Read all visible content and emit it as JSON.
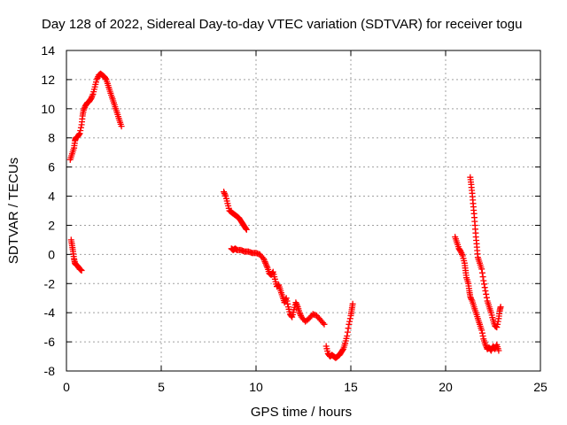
{
  "chart_data": {
    "type": "scatter",
    "title": "Day 128 of 2022, Sidereal Day-to-day VTEC variation (SDTVAR) for receiver togu",
    "xlabel": "GPS time / hours",
    "ylabel": "SDTVAR / TECUs",
    "xlim": [
      0,
      25
    ],
    "ylim": [
      -8,
      14
    ],
    "xticks": [
      0,
      5,
      10,
      15,
      20,
      25
    ],
    "yticks": [
      -8,
      -6,
      -4,
      -2,
      0,
      2,
      4,
      6,
      8,
      10,
      12,
      14
    ],
    "grid": true,
    "marker": "+",
    "color": "#ff0000",
    "series": [
      {
        "name": "SDTVAR",
        "segments": [
          [
            [
              0.2,
              6.5
            ],
            [
              0.3,
              6.9
            ],
            [
              0.4,
              7.3
            ],
            [
              0.45,
              7.8
            ],
            [
              0.5,
              8.0
            ],
            [
              0.6,
              8.1
            ],
            [
              0.7,
              8.3
            ],
            [
              0.8,
              8.9
            ],
            [
              0.85,
              9.5
            ],
            [
              0.9,
              9.9
            ],
            [
              1.0,
              10.2
            ],
            [
              1.1,
              10.4
            ],
            [
              1.2,
              10.5
            ],
            [
              1.3,
              10.7
            ],
            [
              1.4,
              11.0
            ],
            [
              1.5,
              11.5
            ],
            [
              1.6,
              12.0
            ],
            [
              1.7,
              12.3
            ],
            [
              1.8,
              12.4
            ],
            [
              1.9,
              12.3
            ],
            [
              2.0,
              12.2
            ],
            [
              2.1,
              12.0
            ],
            [
              2.2,
              11.6
            ],
            [
              2.3,
              11.2
            ],
            [
              2.4,
              10.8
            ],
            [
              2.5,
              10.4
            ],
            [
              2.6,
              10.0
            ],
            [
              2.7,
              9.6
            ],
            [
              2.8,
              9.2
            ],
            [
              2.9,
              8.8
            ]
          ],
          [
            [
              0.25,
              1.0
            ],
            [
              0.3,
              0.6
            ],
            [
              0.35,
              0.2
            ],
            [
              0.4,
              -0.3
            ],
            [
              0.45,
              -0.6
            ],
            [
              0.5,
              -0.7
            ],
            [
              0.6,
              -0.8
            ],
            [
              0.7,
              -1.0
            ],
            [
              0.8,
              -1.1
            ]
          ],
          [
            [
              8.3,
              4.3
            ],
            [
              8.4,
              4.0
            ],
            [
              8.5,
              3.5
            ],
            [
              8.6,
              3.0
            ],
            [
              8.7,
              2.9
            ],
            [
              8.8,
              2.8
            ],
            [
              8.9,
              2.7
            ],
            [
              9.0,
              2.6
            ],
            [
              9.1,
              2.5
            ],
            [
              9.2,
              2.3
            ],
            [
              9.3,
              2.1
            ],
            [
              9.4,
              1.9
            ],
            [
              9.5,
              1.7
            ]
          ],
          [
            [
              8.7,
              0.4
            ],
            [
              8.8,
              0.3
            ],
            [
              8.9,
              0.4
            ],
            [
              9.0,
              0.3
            ],
            [
              9.2,
              0.3
            ],
            [
              9.4,
              0.2
            ],
            [
              9.6,
              0.2
            ],
            [
              9.8,
              0.1
            ],
            [
              10.0,
              0.1
            ],
            [
              10.2,
              0.0
            ],
            [
              10.4,
              -0.3
            ],
            [
              10.5,
              -0.6
            ],
            [
              10.6,
              -0.9
            ],
            [
              10.7,
              -1.3
            ],
            [
              10.8,
              -1.4
            ],
            [
              10.9,
              -1.2
            ],
            [
              11.0,
              -1.7
            ],
            [
              11.1,
              -2.2
            ],
            [
              11.2,
              -2.1
            ],
            [
              11.3,
              -2.5
            ],
            [
              11.4,
              -2.9
            ],
            [
              11.5,
              -3.3
            ],
            [
              11.6,
              -3.0
            ],
            [
              11.7,
              -3.6
            ],
            [
              11.8,
              -4.1
            ],
            [
              11.9,
              -4.3
            ],
            [
              12.0,
              -3.8
            ],
            [
              12.1,
              -3.3
            ],
            [
              12.2,
              -3.6
            ],
            [
              12.3,
              -4.0
            ],
            [
              12.4,
              -4.3
            ],
            [
              12.6,
              -4.6
            ],
            [
              12.8,
              -4.4
            ],
            [
              13.0,
              -4.1
            ],
            [
              13.2,
              -4.2
            ],
            [
              13.4,
              -4.5
            ],
            [
              13.6,
              -4.8
            ]
          ],
          [
            [
              13.7,
              -6.3
            ],
            [
              13.8,
              -6.8
            ],
            [
              13.9,
              -7.0
            ],
            [
              14.0,
              -6.9
            ],
            [
              14.1,
              -7.0
            ],
            [
              14.2,
              -7.1
            ],
            [
              14.3,
              -7.0
            ],
            [
              14.4,
              -6.9
            ],
            [
              14.5,
              -6.7
            ],
            [
              14.6,
              -6.5
            ],
            [
              14.7,
              -6.1
            ],
            [
              14.8,
              -5.6
            ],
            [
              14.9,
              -4.8
            ],
            [
              15.0,
              -4.2
            ],
            [
              15.05,
              -3.8
            ],
            [
              15.1,
              -3.4
            ]
          ],
          [
            [
              20.5,
              1.2
            ],
            [
              20.6,
              0.8
            ],
            [
              20.7,
              0.4
            ],
            [
              20.8,
              0.2
            ],
            [
              20.9,
              -0.1
            ],
            [
              21.0,
              -0.6
            ],
            [
              21.05,
              -1.1
            ],
            [
              21.1,
              -1.6
            ],
            [
              21.2,
              -2.0
            ],
            [
              21.25,
              -2.5
            ],
            [
              21.3,
              -2.9
            ],
            [
              21.4,
              -3.2
            ],
            [
              21.5,
              -3.6
            ],
            [
              21.6,
              -4.0
            ],
            [
              21.7,
              -4.4
            ],
            [
              21.8,
              -4.8
            ],
            [
              21.9,
              -5.2
            ],
            [
              22.0,
              -5.8
            ],
            [
              22.1,
              -6.2
            ],
            [
              22.2,
              -6.5
            ],
            [
              22.3,
              -6.4
            ],
            [
              22.4,
              -6.6
            ],
            [
              22.5,
              -6.3
            ],
            [
              22.6,
              -6.5
            ],
            [
              22.7,
              -6.2
            ],
            [
              22.8,
              -6.6
            ]
          ],
          [
            [
              21.3,
              5.3
            ],
            [
              21.35,
              4.8
            ],
            [
              21.4,
              4.2
            ],
            [
              21.45,
              3.5
            ],
            [
              21.5,
              2.8
            ],
            [
              21.55,
              2.0
            ],
            [
              21.6,
              1.2
            ],
            [
              21.65,
              0.5
            ],
            [
              21.7,
              -0.2
            ],
            [
              21.8,
              -0.6
            ],
            [
              21.9,
              -1.0
            ],
            [
              22.0,
              -1.8
            ],
            [
              22.1,
              -2.5
            ],
            [
              22.2,
              -3.2
            ],
            [
              22.3,
              -3.6
            ],
            [
              22.4,
              -4.0
            ],
            [
              22.5,
              -4.5
            ],
            [
              22.6,
              -4.9
            ],
            [
              22.7,
              -5.0
            ],
            [
              22.8,
              -4.4
            ],
            [
              22.85,
              -3.9
            ],
            [
              22.9,
              -3.6
            ]
          ]
        ]
      }
    ]
  }
}
